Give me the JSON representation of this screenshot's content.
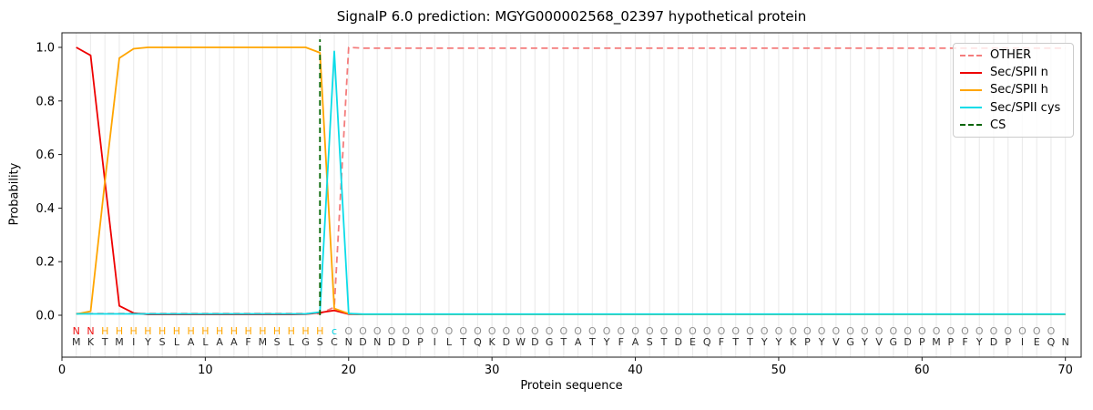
{
  "chart_data": {
    "type": "line",
    "title": "SignalP 6.0 prediction: MGYG000002568_02397 hypothetical protein",
    "xlabel": "Protein sequence",
    "ylabel": "Probability",
    "xlim": [
      0,
      71.1
    ],
    "ylim": [
      -0.156,
      1.054
    ],
    "x_ticks": [
      0,
      10,
      20,
      30,
      40,
      50,
      60,
      70
    ],
    "y_ticks": [
      "0.0",
      "0.2",
      "0.4",
      "0.6",
      "0.8",
      "1.0"
    ],
    "grid": "vertical-per-residue",
    "legend_position": "upper-right",
    "sequence": "MKTMIYSLALAAFMSLGSCNDNDDPILTQKDWDGTATYFASTDEQFTTYYKPYVGYVGDPMPFYDPIEQN",
    "region_labels": "NNHHHHHHHHHHHHHHHHcOOOOOOOOOOOOOOOOOOOOOOOOOOOOOOOOOOOOOOOOOOOOOOOOOO",
    "label_colors": {
      "N": "#ee1111",
      "H": "#ffa500",
      "c": "#00cfe0",
      "O": "#8f8f8f"
    },
    "colors": {
      "grid": "#ececec",
      "spine": "#1a1a1a",
      "residue": "#2b2b2b"
    },
    "legend": [
      {
        "label": "OTHER",
        "color": "#f47c7c",
        "dash": true
      },
      {
        "label": "Sec/SPII n",
        "color": "#ee0000",
        "dash": false
      },
      {
        "label": "Sec/SPII h",
        "color": "#ffa500",
        "dash": false
      },
      {
        "label": "Sec/SPII cys",
        "color": "#0bdce8",
        "dash": false
      },
      {
        "label": "CS",
        "color": "#006400",
        "dash": true
      }
    ],
    "series": [
      {
        "name": "OTHER",
        "color": "#f47c7c",
        "dash": "7,4.5",
        "values": [
          0.006,
          0.006,
          0.006,
          0.006,
          0.006,
          0.006,
          0.006,
          0.006,
          0.006,
          0.006,
          0.006,
          0.006,
          0.006,
          0.006,
          0.006,
          0.006,
          0.006,
          0.006,
          0.03,
          1.0,
          0.997,
          0.997,
          0.997,
          0.997,
          0.997,
          0.997,
          0.997,
          0.997,
          0.997,
          0.997,
          0.997,
          0.997,
          0.997,
          0.997,
          0.997,
          0.997,
          0.997,
          0.997,
          0.997,
          0.997,
          0.997,
          0.997,
          0.997,
          0.997,
          0.997,
          0.997,
          0.997,
          0.997,
          0.997,
          0.997,
          0.997,
          0.997,
          0.997,
          0.997,
          0.997,
          0.997,
          0.997,
          0.997,
          0.997,
          0.997,
          0.997,
          0.997,
          0.997,
          0.997,
          0.997,
          0.997,
          0.997,
          0.997,
          0.997,
          0.997
        ]
      },
      {
        "name": "Sec-SPII-n",
        "color": "#ee0000",
        "dash": "",
        "values": [
          1.0,
          0.97,
          0.5,
          0.035,
          0.008,
          0.003,
          0.003,
          0.003,
          0.003,
          0.003,
          0.003,
          0.003,
          0.003,
          0.003,
          0.003,
          0.003,
          0.004,
          0.01,
          0.018,
          0.004,
          0.003,
          0.003,
          0.003,
          0.003,
          0.003,
          0.003,
          0.003,
          0.003,
          0.003,
          0.003,
          0.003,
          0.003,
          0.003,
          0.003,
          0.003,
          0.003,
          0.003,
          0.003,
          0.003,
          0.003,
          0.003,
          0.003,
          0.003,
          0.003,
          0.003,
          0.003,
          0.003,
          0.003,
          0.003,
          0.003,
          0.003,
          0.003,
          0.003,
          0.003,
          0.003,
          0.003,
          0.003,
          0.003,
          0.003,
          0.003,
          0.003,
          0.003,
          0.003,
          0.003,
          0.003,
          0.003,
          0.003,
          0.003,
          0.003,
          0.003
        ]
      },
      {
        "name": "Sec-SPII-h",
        "color": "#ffa500",
        "dash": "",
        "values": [
          0.004,
          0.015,
          0.5,
          0.96,
          0.995,
          1.0,
          1.0,
          1.0,
          1.0,
          1.0,
          1.0,
          1.0,
          1.0,
          1.0,
          1.0,
          1.0,
          1.0,
          0.98,
          0.025,
          0.006,
          0.003,
          0.003,
          0.003,
          0.003,
          0.003,
          0.003,
          0.003,
          0.003,
          0.003,
          0.003,
          0.003,
          0.003,
          0.003,
          0.003,
          0.003,
          0.003,
          0.003,
          0.003,
          0.003,
          0.003,
          0.003,
          0.003,
          0.003,
          0.003,
          0.003,
          0.003,
          0.003,
          0.003,
          0.003,
          0.003,
          0.003,
          0.003,
          0.003,
          0.003,
          0.003,
          0.003,
          0.003,
          0.003,
          0.003,
          0.003,
          0.003,
          0.003,
          0.003,
          0.003,
          0.003,
          0.003,
          0.003,
          0.003,
          0.003,
          0.003
        ]
      },
      {
        "name": "Sec-SPII-cys",
        "color": "#0bdce8",
        "dash": "",
        "values": [
          0.005,
          0.005,
          0.005,
          0.005,
          0.005,
          0.005,
          0.005,
          0.005,
          0.005,
          0.005,
          0.005,
          0.005,
          0.005,
          0.005,
          0.005,
          0.005,
          0.005,
          0.012,
          0.985,
          0.006,
          0.004,
          0.004,
          0.004,
          0.004,
          0.004,
          0.004,
          0.004,
          0.004,
          0.004,
          0.004,
          0.004,
          0.004,
          0.004,
          0.004,
          0.004,
          0.004,
          0.004,
          0.004,
          0.004,
          0.004,
          0.004,
          0.004,
          0.004,
          0.004,
          0.004,
          0.004,
          0.004,
          0.004,
          0.004,
          0.004,
          0.004,
          0.004,
          0.004,
          0.004,
          0.004,
          0.004,
          0.004,
          0.004,
          0.004,
          0.004,
          0.004,
          0.004,
          0.004,
          0.004,
          0.004,
          0.004,
          0.004,
          0.004,
          0.004,
          0.004
        ]
      }
    ],
    "cs": {
      "position": 18,
      "color": "#006400",
      "dash": "6,4",
      "y_from": 0,
      "y_to": 1.03
    }
  }
}
